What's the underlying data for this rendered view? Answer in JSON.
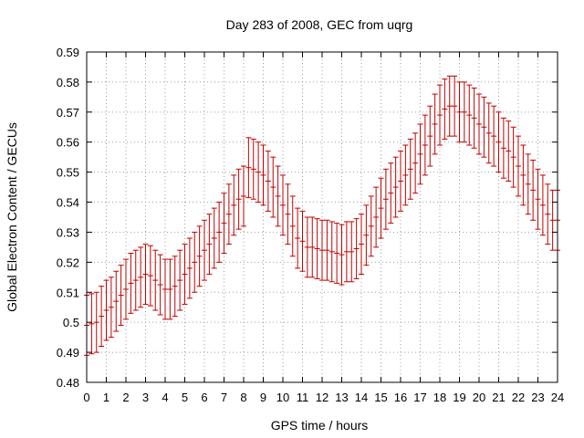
{
  "chart_data": {
    "type": "scatter",
    "title": "Day 283 of 2008, GEC from uqrg",
    "xlabel": "GPS time / hours",
    "ylabel": "Global Electron Content / GECUs",
    "xlim": [
      0,
      24
    ],
    "ylim": [
      0.48,
      0.59
    ],
    "xticks": [
      "0",
      "1",
      "2",
      "3",
      "4",
      "5",
      "6",
      "7",
      "8",
      "9",
      "10",
      "11",
      "12",
      "13",
      "14",
      "15",
      "16",
      "17",
      "18",
      "19",
      "20",
      "21",
      "22",
      "23",
      "24"
    ],
    "yticks": [
      "0.48",
      "0.49",
      "0.5",
      "0.51",
      "0.52",
      "0.53",
      "0.54",
      "0.55",
      "0.56",
      "0.57",
      "0.58",
      "0.59"
    ],
    "grid": true,
    "error_bar_color": "#c00000",
    "error_half_width": 0.01,
    "series": [
      {
        "x": [
          0,
          0.25,
          0.5,
          0.75,
          1,
          1.25,
          1.5,
          1.75,
          2,
          2.25,
          2.5,
          2.75,
          3,
          3.25,
          3.5,
          3.75,
          4,
          4.25,
          4.5,
          4.75,
          5,
          5.25,
          5.5,
          5.75,
          6,
          6.25,
          6.5,
          6.75,
          7,
          7.25,
          7.5,
          7.75,
          8,
          8.25,
          8.5,
          8.75,
          9,
          9.25,
          9.5,
          9.75,
          10,
          10.25,
          10.5,
          10.75,
          11,
          11.25,
          11.5,
          11.75,
          12,
          12.25,
          12.5,
          12.75,
          13,
          13.25,
          13.5,
          13.75,
          14,
          14.25,
          14.5,
          14.75,
          15,
          15.25,
          15.5,
          15.75,
          16,
          16.25,
          16.5,
          16.75,
          17,
          17.25,
          17.5,
          17.75,
          18,
          18.25,
          18.5,
          18.75,
          19,
          19.25,
          19.5,
          19.75,
          20,
          20.25,
          20.5,
          20.75,
          21,
          21.25,
          21.5,
          21.75,
          22,
          22.25,
          22.5,
          22.75,
          23,
          23.25,
          23.5,
          23.75,
          24
        ],
        "y": [
          0.499,
          0.4995,
          0.5,
          0.502,
          0.504,
          0.505,
          0.507,
          0.509,
          0.511,
          0.513,
          0.514,
          0.515,
          0.516,
          0.5155,
          0.514,
          0.5125,
          0.511,
          0.511,
          0.512,
          0.514,
          0.516,
          0.518,
          0.52,
          0.522,
          0.524,
          0.526,
          0.528,
          0.53,
          0.533,
          0.536,
          0.539,
          0.541,
          0.542,
          0.5515,
          0.551,
          0.55,
          0.549,
          0.547,
          0.545,
          0.542,
          0.539,
          0.536,
          0.532,
          0.528,
          0.527,
          0.525,
          0.525,
          0.5245,
          0.524,
          0.524,
          0.5235,
          0.523,
          0.5225,
          0.5235,
          0.5235,
          0.5245,
          0.526,
          0.529,
          0.532,
          0.535,
          0.538,
          0.541,
          0.543,
          0.545,
          0.547,
          0.549,
          0.551,
          0.553,
          0.556,
          0.559,
          0.562,
          0.566,
          0.569,
          0.571,
          0.572,
          0.572,
          0.57,
          0.57,
          0.569,
          0.568,
          0.566,
          0.565,
          0.563,
          0.562,
          0.56,
          0.558,
          0.557,
          0.555,
          0.552,
          0.549,
          0.546,
          0.544,
          0.541,
          0.539,
          0.536,
          0.534,
          0.534
        ]
      }
    ]
  }
}
